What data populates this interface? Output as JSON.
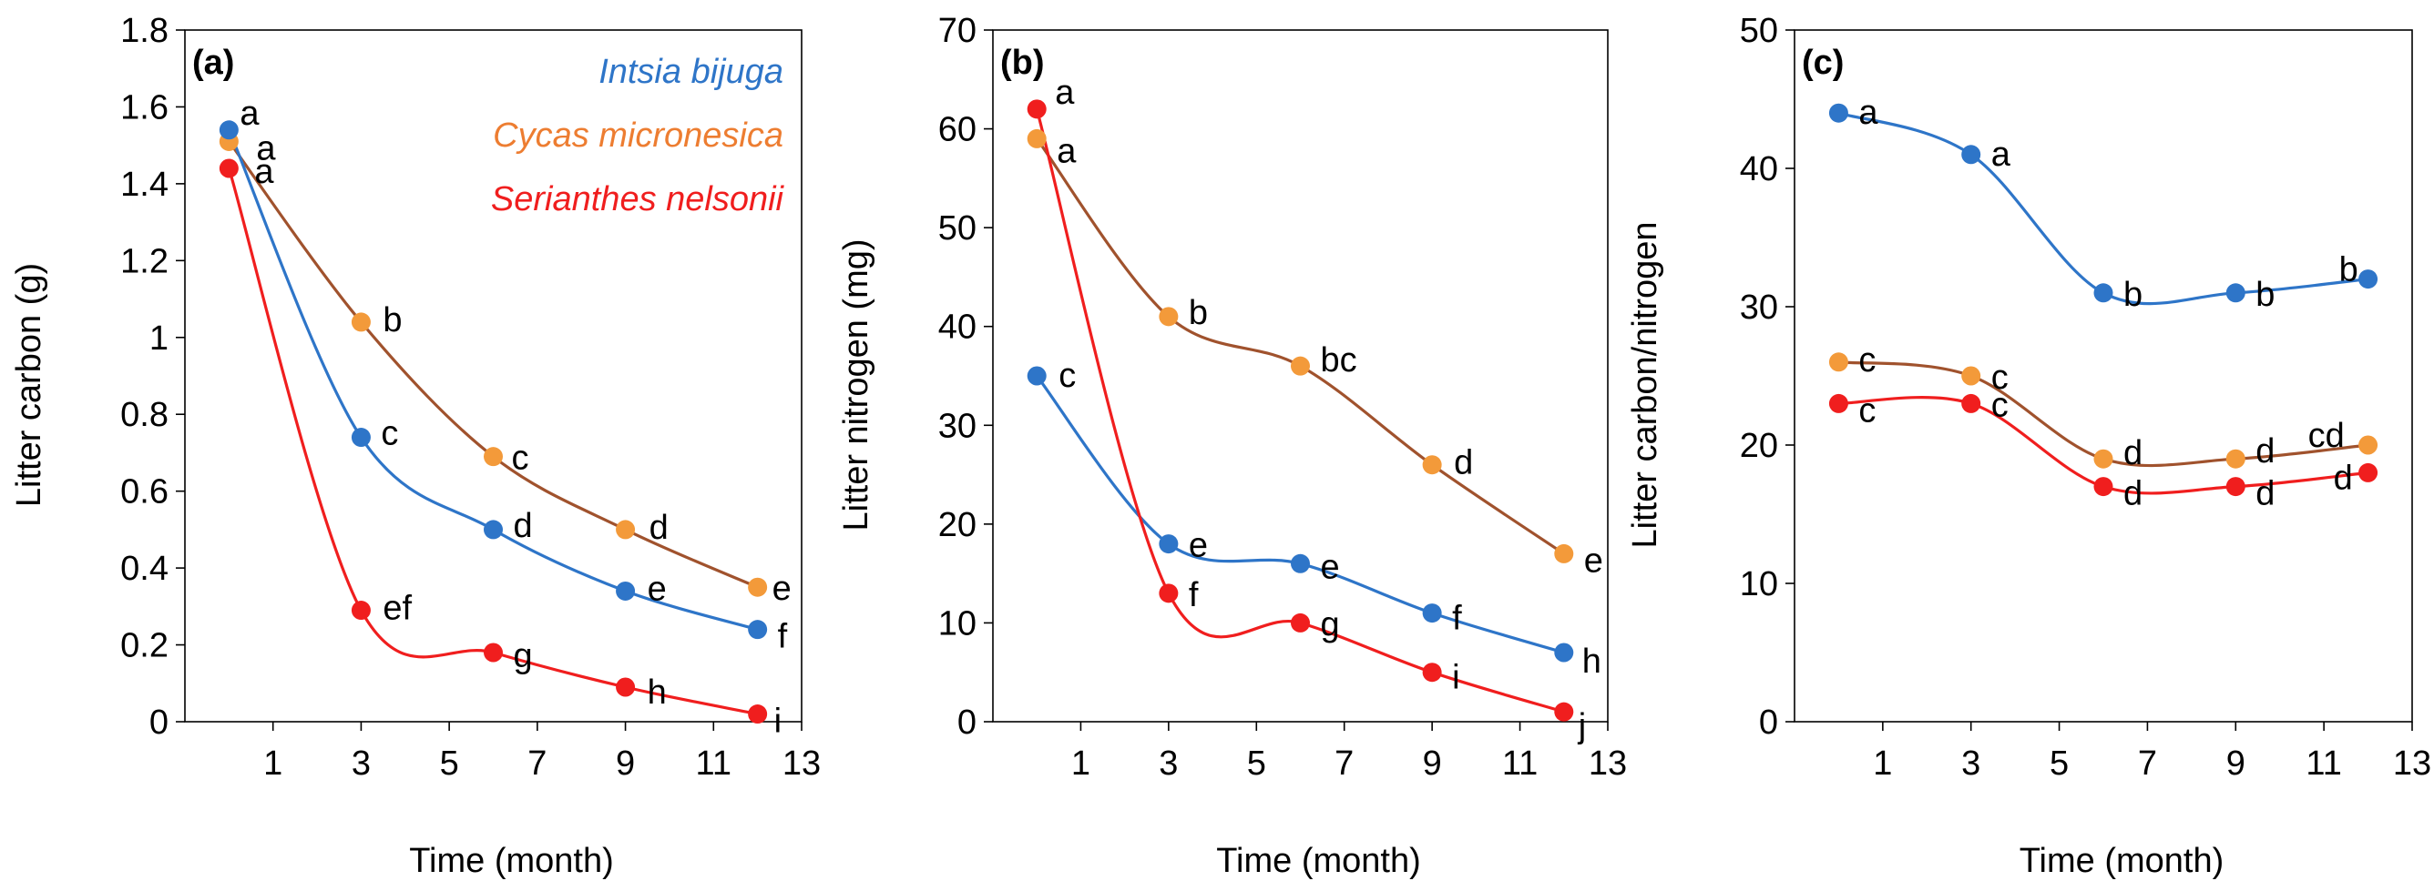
{
  "figure": {
    "colors": {
      "intsia": "#2E75C8",
      "cycas_fill": "#F39A3A",
      "cycas_line": "#A0522D",
      "serianthes": "#F01E1E",
      "axis": "#000000"
    },
    "legend": [
      {
        "name": "Intsia bijuga",
        "color": "#2E75C8"
      },
      {
        "name": "Cycas micronesica",
        "color": "#ED7D31"
      },
      {
        "name": "Serianthes nelsonii",
        "color": "#F01E1E"
      }
    ]
  },
  "chart_data": [
    {
      "type": "line",
      "panel_label": "(a)",
      "title": "",
      "xlabel": "Time (month)",
      "ylabel": "Litter carbon (g)",
      "xlim": [
        -1,
        13
      ],
      "ylim": [
        0,
        1.8
      ],
      "xticks": [
        1,
        3,
        5,
        7,
        9,
        11,
        13
      ],
      "yticks": [
        "0",
        "0.2",
        "0.4",
        "0.6",
        "0.8",
        "1",
        "1.2",
        "1.4",
        "1.6",
        "1.8"
      ],
      "ytick_values": [
        0,
        0.2,
        0.4,
        0.6,
        0.8,
        1.0,
        1.2,
        1.4,
        1.6,
        1.8
      ],
      "x": [
        0,
        3,
        6,
        9,
        12
      ],
      "series": [
        {
          "key": "intsia",
          "name": "Intsia bijuga",
          "values": [
            1.54,
            0.74,
            0.5,
            0.34,
            0.24
          ],
          "letters": [
            "a",
            "c",
            "d",
            "e",
            "f"
          ]
        },
        {
          "key": "cycas",
          "name": "Cycas micronesica",
          "values": [
            1.51,
            1.04,
            0.69,
            0.5,
            0.35
          ],
          "letters": [
            "a",
            "b",
            "c",
            "d",
            "e"
          ]
        },
        {
          "key": "serianthes",
          "name": "Serianthes nelsonii",
          "values": [
            1.44,
            0.29,
            0.18,
            0.09,
            0.02
          ],
          "letters": [
            "a",
            "ef",
            "g",
            "h",
            "i"
          ]
        }
      ]
    },
    {
      "type": "line",
      "panel_label": "(b)",
      "title": "",
      "xlabel": "Time (month)",
      "ylabel": "Litter nitrogen (mg)",
      "xlim": [
        -1,
        13
      ],
      "ylim": [
        0,
        70
      ],
      "xticks": [
        1,
        3,
        5,
        7,
        9,
        11,
        13
      ],
      "yticks": [
        "0",
        "10",
        "20",
        "30",
        "40",
        "50",
        "60",
        "70"
      ],
      "ytick_values": [
        0,
        10,
        20,
        30,
        40,
        50,
        60,
        70
      ],
      "x": [
        0,
        3,
        6,
        9,
        12
      ],
      "series": [
        {
          "key": "intsia",
          "name": "Intsia bijuga",
          "values": [
            35,
            18,
            16,
            11,
            7
          ],
          "letters": [
            "c",
            "e",
            "e",
            "f",
            "h"
          ]
        },
        {
          "key": "cycas",
          "name": "Cycas micronesica",
          "values": [
            59,
            41,
            36,
            26,
            17
          ],
          "letters": [
            "a",
            "b",
            "bc",
            "d",
            "e"
          ]
        },
        {
          "key": "serianthes",
          "name": "Serianthes nelsonii",
          "values": [
            62,
            13,
            10,
            5,
            1
          ],
          "letters": [
            "a",
            "f",
            "g",
            "i",
            "j"
          ]
        }
      ]
    },
    {
      "type": "line",
      "panel_label": "(c)",
      "title": "",
      "xlabel": "Time (month)",
      "ylabel": "Litter carbon/nitrogen",
      "xlim": [
        -1,
        13
      ],
      "ylim": [
        0,
        50
      ],
      "xticks": [
        1,
        3,
        5,
        7,
        9,
        11,
        13
      ],
      "yticks": [
        "0",
        "10",
        "20",
        "30",
        "40",
        "50"
      ],
      "ytick_values": [
        0,
        10,
        20,
        30,
        40,
        50
      ],
      "x": [
        0,
        3,
        6,
        9,
        12
      ],
      "series": [
        {
          "key": "intsia",
          "name": "Intsia bijuga",
          "values": [
            44,
            41,
            31,
            31,
            32
          ],
          "letters": [
            "a",
            "a",
            "b",
            "b",
            "b"
          ]
        },
        {
          "key": "cycas",
          "name": "Cycas micronesica",
          "values": [
            26,
            25,
            19,
            19,
            20
          ],
          "letters": [
            "c",
            "c",
            "d",
            "d",
            "cd"
          ]
        },
        {
          "key": "serianthes",
          "name": "Serianthes nelsonii",
          "values": [
            23,
            23,
            17,
            17,
            18
          ],
          "letters": [
            "c",
            "c",
            "d",
            "d",
            "d"
          ]
        }
      ]
    }
  ]
}
